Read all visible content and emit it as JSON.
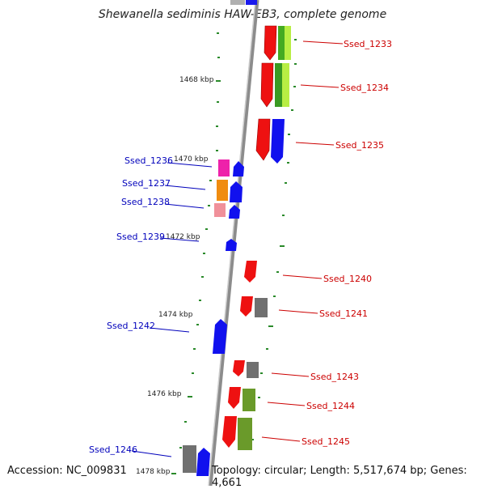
{
  "title": "Shewanella sediminis HAW-EB3, complete genome",
  "footer": {
    "accession": "Accession: NC_009831",
    "summary": "Topology: circular; Length: 5,517,674 bp; Genes: 4,661"
  },
  "colors": {
    "forward_label": "#cc0000",
    "reverse_label": "#0000bb",
    "backbone": "#8c8c8c",
    "tick": "#2a8a2a"
  },
  "kbp_labels": [
    "1468 kbp",
    "1470 kbp",
    "1472 kbp",
    "1474 kbp",
    "1476 kbp",
    "1478 kbp"
  ],
  "genes_forward": [
    "Ssed_1233",
    "Ssed_1234",
    "Ssed_1235",
    "Ssed_1240",
    "Ssed_1241",
    "Ssed_1243",
    "Ssed_1244",
    "Ssed_1245"
  ],
  "genes_reverse": [
    "Ssed_1236",
    "Ssed_1237",
    "Ssed_1238",
    "Ssed_1239",
    "Ssed_1242",
    "Ssed_1246"
  ]
}
